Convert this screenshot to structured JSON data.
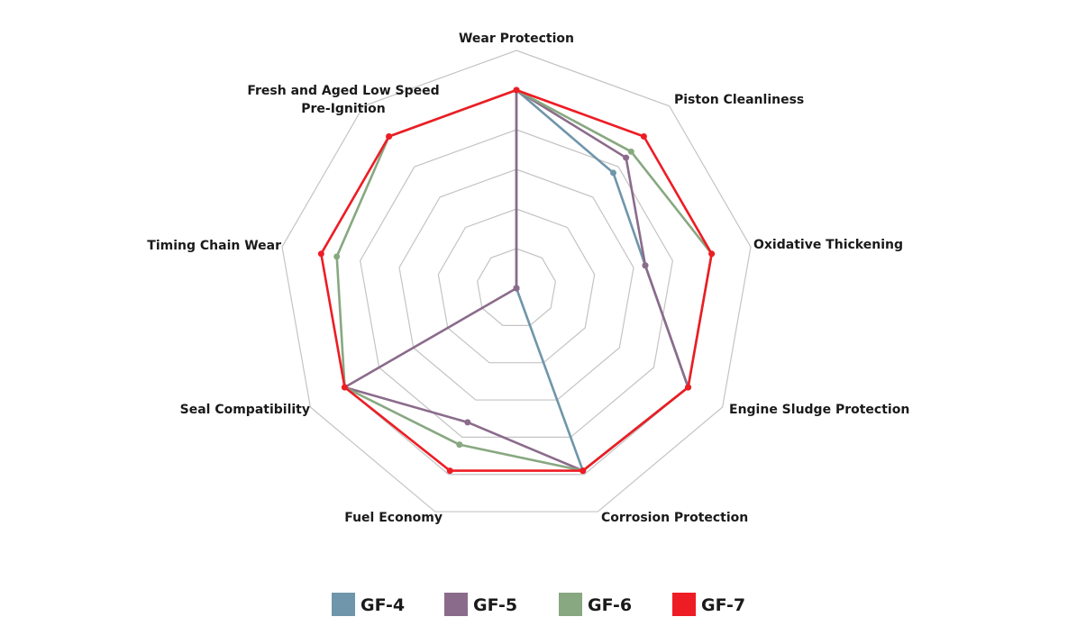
{
  "chart_data": {
    "type": "radar",
    "title": "",
    "axes": [
      "Wear Protection",
      "Piston Cleanliness",
      "Oxidative Thickening",
      "Engine Sludge Protection",
      "Corrosion Protection",
      "Fuel Economy",
      "Seal Compatibility",
      "Timing Chain Wear",
      "Fresh and Aged Low Speed Pre-Ignition"
    ],
    "range": [
      0,
      6
    ],
    "rings": 6,
    "grid": true,
    "legend_position": "bottom",
    "series": [
      {
        "name": "GF-4",
        "color": "#6f96aa",
        "values": [
          5,
          3.8,
          3.3,
          5,
          4.9,
          0,
          0,
          0,
          0
        ]
      },
      {
        "name": "GF-5",
        "color": "#8b6b8b",
        "values": [
          5,
          4.3,
          3.3,
          5,
          4.9,
          3.6,
          5,
          0,
          0
        ]
      },
      {
        "name": "GF-6",
        "color": "#87a880",
        "values": [
          5,
          4.5,
          5,
          5,
          4.9,
          4.2,
          5,
          4.6,
          5
        ]
      },
      {
        "name": "GF-7",
        "color": "#ee1c24",
        "values": [
          5,
          5,
          5,
          5,
          4.9,
          4.9,
          5,
          5,
          5
        ]
      }
    ]
  }
}
